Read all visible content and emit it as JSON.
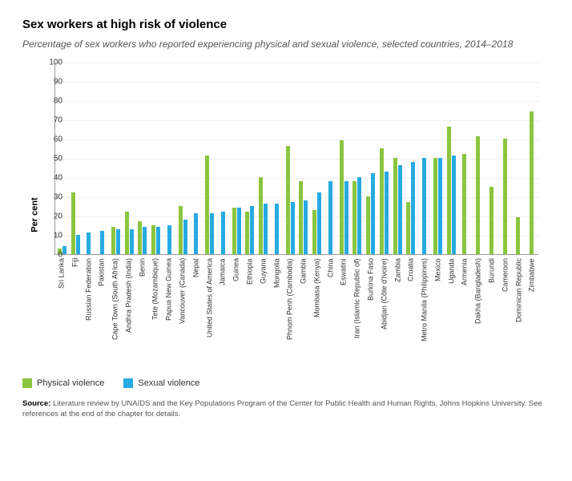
{
  "title": "Sex workers at high risk of violence",
  "subtitle": "Percentage of sex workers who reported experiencing physical and sexual violence, selected countries, 2014–2018",
  "y_axis_label": "Per cent",
  "chart": {
    "type": "bar",
    "ylim": [
      0,
      100
    ],
    "ytick_step": 10,
    "background_color": "#ffffff",
    "grid_color": "#eeeeee",
    "bar_colors": {
      "physical": "#8bc53f",
      "sexual": "#27aae1"
    },
    "label_fontsize": 9,
    "tick_fontsize": 10,
    "countries": [
      {
        "name": "Sri Lanka",
        "physical": 3,
        "sexual": 4
      },
      {
        "name": "Fiji",
        "physical": 32,
        "sexual": 10
      },
      {
        "name": "Russian Federation",
        "physical": null,
        "sexual": 11
      },
      {
        "name": "Pakistan",
        "physical": null,
        "sexual": 12
      },
      {
        "name": "Cape Town (South Africa)",
        "physical": 14,
        "sexual": 13
      },
      {
        "name": "Andhra Pradesh (India)",
        "physical": 22,
        "sexual": 13
      },
      {
        "name": "Benin",
        "physical": 17,
        "sexual": 14
      },
      {
        "name": "Tete (Mozambique)",
        "physical": 15,
        "sexual": 14
      },
      {
        "name": "Papua New Guinea",
        "physical": null,
        "sexual": 15
      },
      {
        "name": "Vancouver (Canada)",
        "physical": 25,
        "sexual": 18
      },
      {
        "name": "Nepal",
        "physical": null,
        "sexual": 21
      },
      {
        "name": "United States of America",
        "physical": 51,
        "sexual": 21
      },
      {
        "name": "Jamaica",
        "physical": null,
        "sexual": 22
      },
      {
        "name": "Guinea",
        "physical": 24,
        "sexual": 24
      },
      {
        "name": "Ethiopia",
        "physical": 22,
        "sexual": 25
      },
      {
        "name": "Guyana",
        "physical": 40,
        "sexual": 26
      },
      {
        "name": "Mongolia",
        "physical": null,
        "sexual": 26
      },
      {
        "name": "Phnom Penh (Cambodia)",
        "physical": 56,
        "sexual": 27
      },
      {
        "name": "Gambia",
        "physical": 38,
        "sexual": 28
      },
      {
        "name": "Mombasa (Kenya)",
        "physical": 23,
        "sexual": 32
      },
      {
        "name": "China",
        "physical": null,
        "sexual": 38
      },
      {
        "name": "Eswatini",
        "physical": 59,
        "sexual": 38
      },
      {
        "name": "Iran (Islamic Republic of)",
        "physical": 38,
        "sexual": 40
      },
      {
        "name": "Burkina Faso",
        "physical": 30,
        "sexual": 42
      },
      {
        "name": "Abidjan (Côte d'Ivoire)",
        "physical": 55,
        "sexual": 43
      },
      {
        "name": "Zambia",
        "physical": 50,
        "sexual": 46
      },
      {
        "name": "Croatia",
        "physical": 27,
        "sexual": 48
      },
      {
        "name": "Metro Manila (Philippines)",
        "physical": null,
        "sexual": 50
      },
      {
        "name": "Mexico",
        "physical": 50,
        "sexual": 50
      },
      {
        "name": "Uganda",
        "physical": 66,
        "sexual": 51
      },
      {
        "name": "Armenia",
        "physical": 52,
        "sexual": null
      },
      {
        "name": "Dakha (Bangladesh)",
        "physical": 61,
        "sexual": null
      },
      {
        "name": "Burundi",
        "physical": 35,
        "sexual": null
      },
      {
        "name": "Cameroon",
        "physical": 60,
        "sexual": null
      },
      {
        "name": "Dominican Republic",
        "physical": 19,
        "sexual": null
      },
      {
        "name": "Zimbabwe",
        "physical": 74,
        "sexual": null
      }
    ]
  },
  "legend": {
    "physical": "Physical violence",
    "sexual": "Sexual violence"
  },
  "source_label": "Source:",
  "source": "Literature review by UNAIDS and the Key Populations Program of the Center for Public Health and Human Rights, Johns Hopkins University. See references at the end of the chapter for details."
}
